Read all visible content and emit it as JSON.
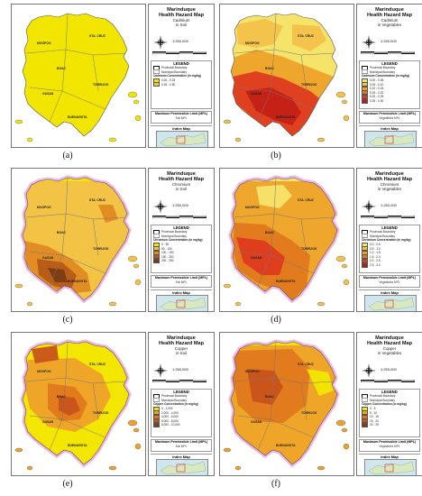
{
  "panels": [
    {
      "id": "a",
      "title_line1": "Marinduque",
      "title_line2": "Health Hazard Map",
      "element": "Cadmium",
      "medium": "in Soil",
      "caption": "(a)",
      "scale": "1:250,000",
      "legend_title": "LEGEND",
      "boundary_labels": [
        "Provincial Boundary",
        "Municipal Boundary"
      ],
      "conc_title": "Cadmium Concentration (in mg/kg)",
      "classes": [
        "0.00 - 0.25",
        "0.25 - 0.50"
      ],
      "mpl_title": "Maximum Permissible Limit (MPL)",
      "mpl_lines": [
        "Soil MPL"
      ],
      "index_title": "Index Map"
    },
    {
      "id": "b",
      "title_line1": "Marinduque",
      "title_line2": "Health Hazard Map",
      "element": "Cadmium",
      "medium": "in Vegetables",
      "caption": "(b)",
      "scale": "1:250,000",
      "legend_title": "LEGEND",
      "boundary_labels": [
        "Provincial Boundary",
        "Municipal Boundary"
      ],
      "conc_title": "Cadmium Concentration (in mg/kg)",
      "classes": [
        "0.00 - 0.05",
        "0.05 - 0.10",
        "0.10 - 0.15",
        "0.15 - 0.20",
        "0.20 - 0.25",
        "0.25 - 0.30"
      ],
      "mpl_title": "Maximum Permissible Limit (MPL)",
      "mpl_lines": [
        "Vegetables MPL"
      ],
      "index_title": "Index Map"
    },
    {
      "id": "c",
      "title_line1": "Marinduque",
      "title_line2": "Health Hazard Map",
      "element": "Chromium",
      "medium": "in Soil",
      "caption": "(c)",
      "scale": "1:250,000",
      "legend_title": "LEGEND",
      "boundary_labels": [
        "Provincial Boundary",
        "Municipal Boundary"
      ],
      "conc_title": "Chromium Concentration (in mg/kg)",
      "classes": [
        "0 - 50",
        "50 - 100",
        "100 - 150",
        "150 - 200",
        "200 - 250"
      ],
      "mpl_title": "Maximum Permissible Limit (MPL)",
      "mpl_lines": [
        "Soil MPL"
      ],
      "index_title": "Index Map"
    },
    {
      "id": "d",
      "title_line1": "Marinduque",
      "title_line2": "Health Hazard Map",
      "element": "Chromium",
      "medium": "in Vegetables",
      "caption": "(d)",
      "scale": "1:250,000",
      "legend_title": "LEGEND",
      "boundary_labels": [
        "Provincial Boundary",
        "Municipal Boundary"
      ],
      "conc_title": "Chromium Concentration (in mg/kg)",
      "classes": [
        "0.0 - 0.5",
        "0.5 - 1.0",
        "1.0 - 1.5",
        "1.5 - 2.0",
        "2.0 - 2.5",
        "2.5 - 3.0"
      ],
      "mpl_title": "Maximum Permissible Limit (MPL)",
      "mpl_lines": [
        "Vegetables MPL"
      ],
      "index_title": "Index Map"
    },
    {
      "id": "e",
      "title_line1": "Marinduque",
      "title_line2": "Health Hazard Map",
      "element": "Copper",
      "medium": "in Soil",
      "caption": "(e)",
      "scale": "1:250,000",
      "legend_title": "LEGEND",
      "boundary_labels": [
        "Provincial Boundary",
        "Municipal Boundary"
      ],
      "conc_title": "Copper Concentration (in mg/kg)",
      "classes": [
        "0 - 2,000",
        "2,000 - 4,000",
        "4,000 - 6,000",
        "6,000 - 8,000",
        "8,000 - 10,000"
      ],
      "mpl_title": "Maximum Permissible Limit (MPL)",
      "mpl_lines": [
        "Soil MPL"
      ],
      "index_title": "Index Map"
    },
    {
      "id": "f",
      "title_line1": "Marinduque",
      "title_line2": "Health Hazard Map",
      "element": "Copper",
      "medium": "in Vegetables",
      "caption": "(f)",
      "scale": "1:250,000",
      "legend_title": "LEGEND",
      "boundary_labels": [
        "Provincial Boundary",
        "Municipal Boundary"
      ],
      "conc_title": "Copper Concentration (in mg/kg)",
      "classes": [
        "0 - 5",
        "5 - 10",
        "10 - 15",
        "15 - 20",
        "20 - 25"
      ],
      "mpl_title": "Maximum Permissible Limit (MPL)",
      "mpl_lines": [
        "Vegetables MPL"
      ],
      "index_title": "Index Map"
    }
  ],
  "municipality_labels": [
    "MOGPOG",
    "STA. CRUZ",
    "BOAC",
    "TORRIJOS",
    "GASAN",
    "BUENAVISTA"
  ],
  "colors": {
    "yellow": "#f2e600",
    "light_orange": "#f5c242",
    "orange": "#eea22a",
    "dark_orange": "#e0781c",
    "red": "#dd3a1f",
    "brown": "#a04b17",
    "pink_halo": "#f0b2e8",
    "sea": "#ffffff"
  }
}
